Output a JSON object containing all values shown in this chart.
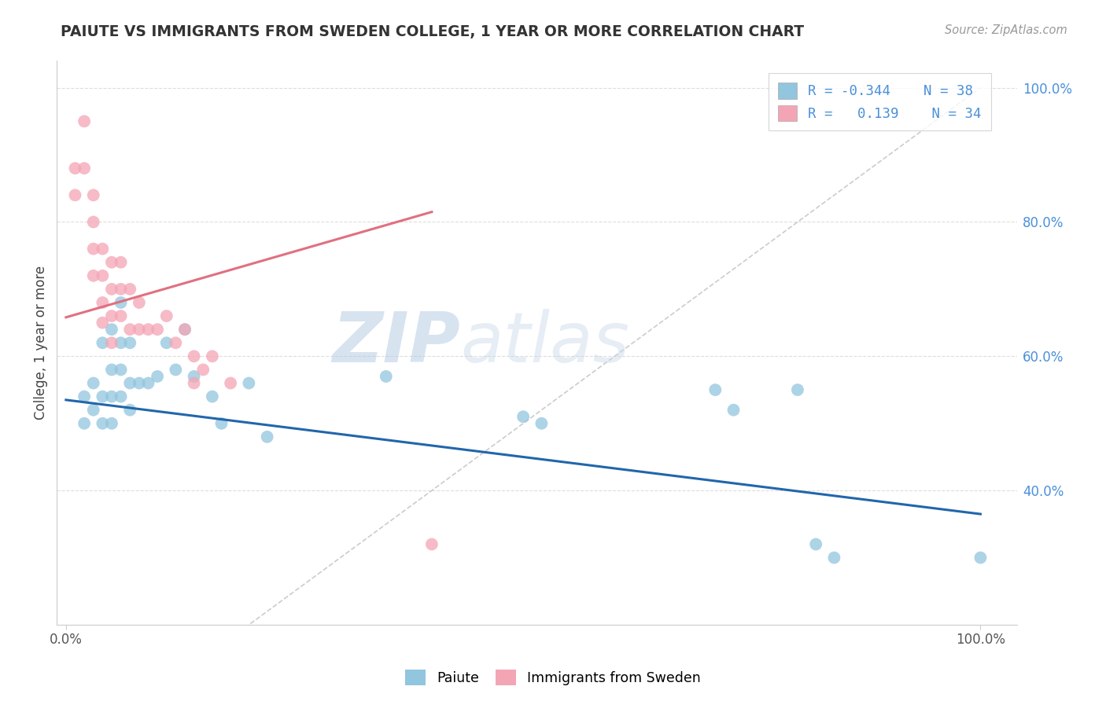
{
  "title": "PAIUTE VS IMMIGRANTS FROM SWEDEN COLLEGE, 1 YEAR OR MORE CORRELATION CHART",
  "source": "Source: ZipAtlas.com",
  "ylabel": "College, 1 year or more",
  "blue_color": "#92c5de",
  "pink_color": "#f4a5b5",
  "blue_line_color": "#2166ac",
  "pink_line_color": "#e07080",
  "blue_x": [
    0.02,
    0.02,
    0.03,
    0.03,
    0.04,
    0.04,
    0.04,
    0.05,
    0.05,
    0.05,
    0.05,
    0.06,
    0.06,
    0.06,
    0.06,
    0.07,
    0.07,
    0.07,
    0.08,
    0.09,
    0.1,
    0.11,
    0.12,
    0.13,
    0.14,
    0.16,
    0.17,
    0.2,
    0.22,
    0.35,
    0.5,
    0.52,
    0.71,
    0.73,
    0.8,
    0.82,
    0.84,
    1.0
  ],
  "blue_y": [
    0.54,
    0.5,
    0.56,
    0.52,
    0.62,
    0.54,
    0.5,
    0.64,
    0.58,
    0.54,
    0.5,
    0.68,
    0.62,
    0.58,
    0.54,
    0.62,
    0.56,
    0.52,
    0.56,
    0.56,
    0.57,
    0.62,
    0.58,
    0.64,
    0.57,
    0.54,
    0.5,
    0.56,
    0.48,
    0.57,
    0.51,
    0.5,
    0.55,
    0.52,
    0.55,
    0.32,
    0.3,
    0.3
  ],
  "pink_x": [
    0.01,
    0.01,
    0.02,
    0.02,
    0.03,
    0.03,
    0.03,
    0.03,
    0.04,
    0.04,
    0.04,
    0.04,
    0.05,
    0.05,
    0.05,
    0.05,
    0.06,
    0.06,
    0.06,
    0.07,
    0.07,
    0.08,
    0.08,
    0.09,
    0.1,
    0.11,
    0.12,
    0.13,
    0.14,
    0.14,
    0.15,
    0.16,
    0.18,
    0.4
  ],
  "pink_y": [
    0.88,
    0.84,
    0.95,
    0.88,
    0.84,
    0.8,
    0.76,
    0.72,
    0.76,
    0.72,
    0.68,
    0.65,
    0.74,
    0.7,
    0.66,
    0.62,
    0.74,
    0.7,
    0.66,
    0.7,
    0.64,
    0.68,
    0.64,
    0.64,
    0.64,
    0.66,
    0.62,
    0.64,
    0.6,
    0.56,
    0.58,
    0.6,
    0.56,
    0.32
  ],
  "blue_line_x": [
    0.0,
    1.0
  ],
  "blue_line_y": [
    0.535,
    0.365
  ],
  "pink_line_x": [
    0.0,
    0.4
  ],
  "pink_line_y": [
    0.658,
    0.815
  ],
  "ref_line_x": [
    0.0,
    1.0
  ],
  "ref_line_y": [
    0.0,
    1.0
  ],
  "xlim": [
    -0.01,
    1.04
  ],
  "ylim": [
    0.2,
    1.04
  ],
  "ytick_vals": [
    0.4,
    0.6,
    0.8,
    1.0
  ],
  "ytick_labels": [
    "40.0%",
    "60.0%",
    "80.0%",
    "100.0%"
  ],
  "xtick_vals": [
    0.0,
    1.0
  ],
  "xtick_labels": [
    "0.0%",
    "100.0%"
  ],
  "watermark_zip": "ZIP",
  "watermark_atlas": "atlas",
  "background_color": "#ffffff"
}
